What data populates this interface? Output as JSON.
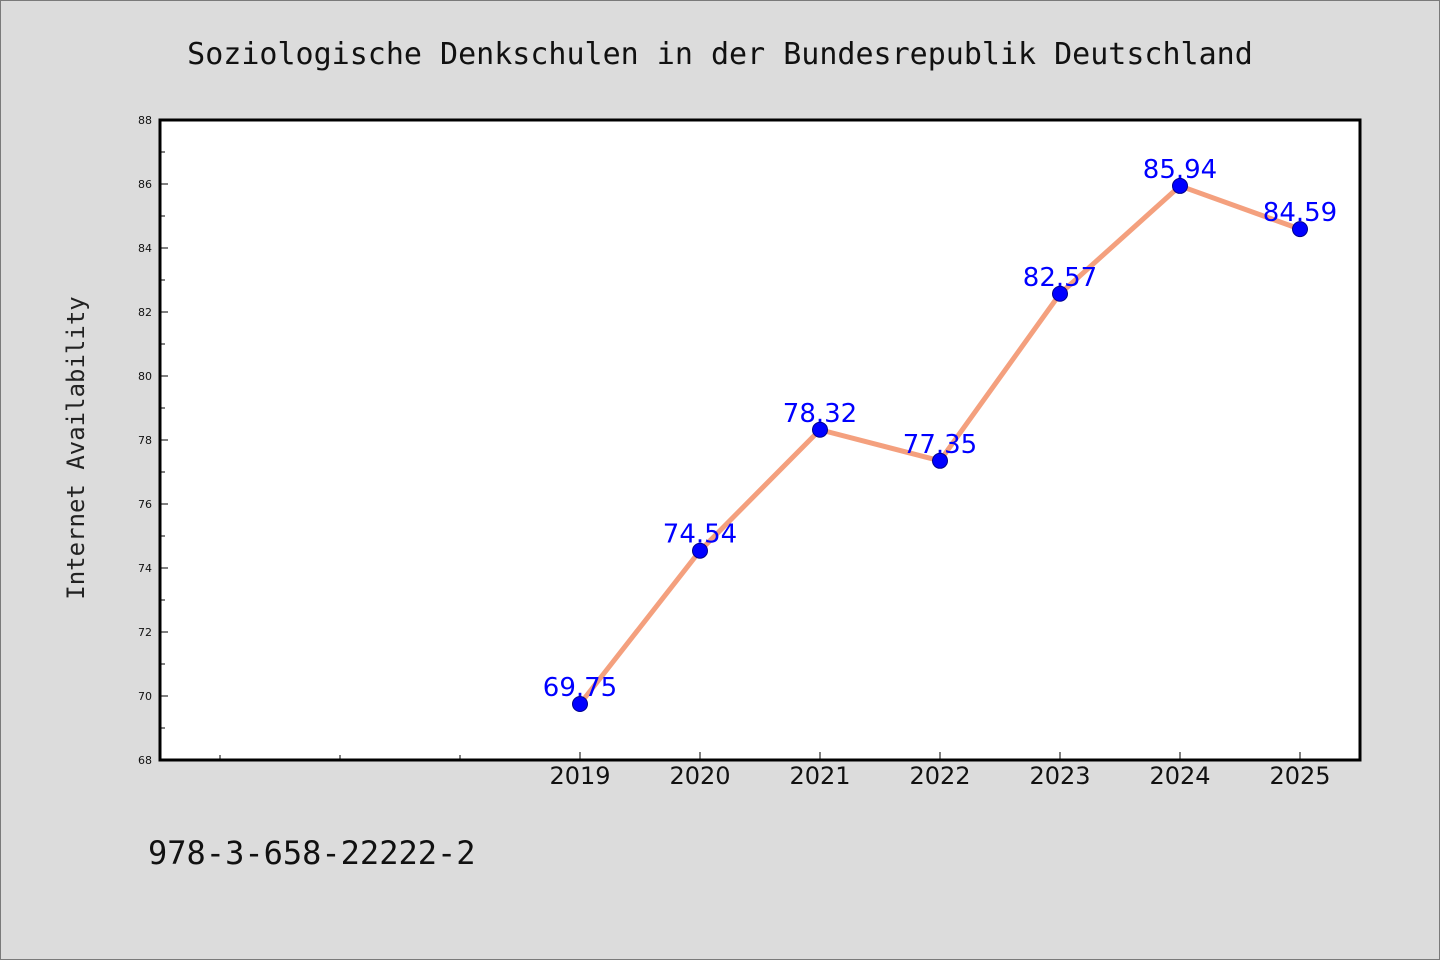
{
  "chart_data": {
    "type": "line",
    "title": "Soziologische Denkschulen in der Bundesrepublik Deutschland",
    "xlabel": "",
    "ylabel": "Internet Availability",
    "categories": [
      "2019",
      "2020",
      "2021",
      "2022",
      "2023",
      "2024",
      "2025"
    ],
    "series": [
      {
        "values": [
          69.75,
          74.54,
          78.32,
          77.35,
          82.57,
          85.94,
          84.59
        ],
        "data_labels": [
          "69.75",
          "74.54",
          "78.32",
          "77.35",
          "82.57",
          "85.94",
          "84.59"
        ]
      }
    ],
    "ylim": [
      68,
      88
    ],
    "yticks": [
      "68",
      "70",
      "72",
      "74",
      "76",
      "78",
      "80",
      "82",
      "84",
      "86",
      "88"
    ],
    "grid": false,
    "colors": {
      "line": "#f4a07e",
      "marker": "#0000ff",
      "data_label": "#0000ff",
      "plot_background": "#ffffff",
      "figure_background": "#dcdcdc"
    }
  },
  "footer": {
    "isbn": "978-3-658-22222-2"
  }
}
